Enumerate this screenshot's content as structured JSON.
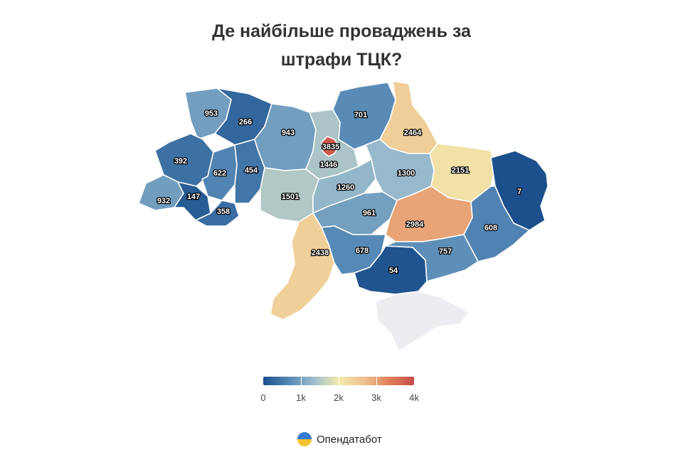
{
  "title": {
    "line1": "Де найбільше проваджень за",
    "line2": "штрафи ТЦК?"
  },
  "colors": {
    "scale": [
      "#1b4f8c",
      "#5588b5",
      "#9bbccc",
      "#f2eaae",
      "#efc28e",
      "#e0805c",
      "#c44b48"
    ],
    "no_data": "#ecedf1"
  },
  "chart_data": {
    "type": "choropleth",
    "regions": [
      {
        "name": "Volyn",
        "value": 953
      },
      {
        "name": "Rivne",
        "value": 266
      },
      {
        "name": "Zhytomyr",
        "value": 943
      },
      {
        "name": "Kyiv oblast",
        "value": 1446
      },
      {
        "name": "Kyiv city",
        "value": 3835
      },
      {
        "name": "Chernihiv",
        "value": 701
      },
      {
        "name": "Sumy",
        "value": 2464
      },
      {
        "name": "Kharkiv",
        "value": 2151
      },
      {
        "name": "Luhansk",
        "value": 7
      },
      {
        "name": "Lviv",
        "value": 392
      },
      {
        "name": "Ternopil",
        "value": 622
      },
      {
        "name": "Khmelnytskyi",
        "value": 454
      },
      {
        "name": "Zakarpattia",
        "value": 932
      },
      {
        "name": "Ivano-Frankivsk",
        "value": 147
      },
      {
        "name": "Chernivtsi",
        "value": 358
      },
      {
        "name": "Vinnytsia",
        "value": 1501
      },
      {
        "name": "Cherkasy",
        "value": 1260
      },
      {
        "name": "Poltava",
        "value": 1300
      },
      {
        "name": "Kirovohrad",
        "value": 961
      },
      {
        "name": "Dnipropetrovsk",
        "value": 2984
      },
      {
        "name": "Donetsk",
        "value": 608
      },
      {
        "name": "Odesa",
        "value": 2438
      },
      {
        "name": "Mykolaiv",
        "value": 678
      },
      {
        "name": "Kherson",
        "value": 54
      },
      {
        "name": "Zaporizhzhia",
        "value": 757
      },
      {
        "name": "Crimea",
        "value": null
      }
    ],
    "legend": {
      "min": 0,
      "max": 4000,
      "ticks": [
        "0",
        "1k",
        "2k",
        "3k",
        "4k"
      ]
    }
  },
  "brand": {
    "name": "Опендатабот"
  }
}
